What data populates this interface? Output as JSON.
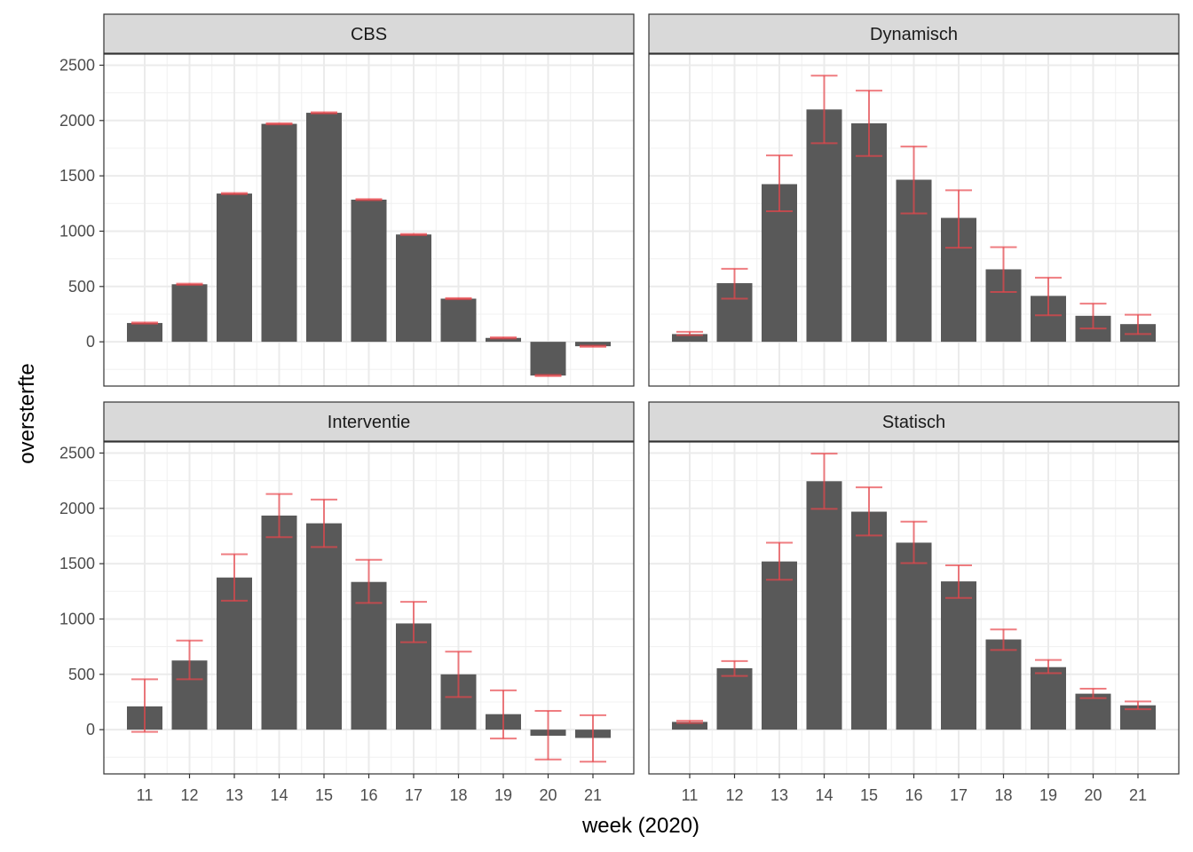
{
  "chart_data": {
    "type": "bar",
    "layout": "facet grid 2x2, shared axes",
    "xlabel": "week (2020)",
    "ylabel": "oversterfte",
    "categories": [
      "11",
      "12",
      "13",
      "14",
      "15",
      "16",
      "17",
      "18",
      "19",
      "20",
      "21"
    ],
    "ylim": [
      -400,
      2600
    ],
    "yticks": [
      0,
      500,
      1000,
      1500,
      2000,
      2500
    ],
    "grid": true,
    "bar_color": "#595959",
    "errorbar_color": "#e8464b",
    "panels": [
      {
        "title": "CBS",
        "values": [
          170,
          520,
          1340,
          1970,
          2070,
          1285,
          970,
          390,
          35,
          -305,
          -40
        ],
        "lower": [
          165,
          515,
          1335,
          1965,
          2065,
          1280,
          965,
          385,
          30,
          -310,
          -45
        ],
        "upper": [
          175,
          525,
          1345,
          1975,
          2075,
          1290,
          975,
          395,
          40,
          -300,
          -35
        ]
      },
      {
        "title": "Dynamisch",
        "values": [
          70,
          530,
          1425,
          2100,
          1975,
          1465,
          1120,
          655,
          415,
          235,
          160
        ],
        "lower": [
          60,
          390,
          1180,
          1795,
          1680,
          1160,
          850,
          450,
          240,
          120,
          70
        ],
        "upper": [
          90,
          660,
          1685,
          2405,
          2270,
          1765,
          1370,
          855,
          580,
          345,
          245
        ]
      },
      {
        "title": "Interventie",
        "values": [
          210,
          625,
          1375,
          1935,
          1865,
          1335,
          960,
          500,
          140,
          -55,
          -75
        ],
        "lower": [
          -20,
          455,
          1165,
          1740,
          1650,
          1145,
          790,
          295,
          -80,
          -270,
          -290
        ],
        "upper": [
          455,
          805,
          1585,
          2130,
          2080,
          1535,
          1155,
          705,
          355,
          170,
          130
        ]
      },
      {
        "title": "Statisch",
        "values": [
          70,
          555,
          1520,
          2245,
          1970,
          1690,
          1340,
          815,
          565,
          325,
          220
        ],
        "lower": [
          60,
          485,
          1355,
          1995,
          1755,
          1505,
          1190,
          720,
          510,
          285,
          185
        ],
        "upper": [
          80,
          620,
          1690,
          2495,
          2190,
          1880,
          1485,
          905,
          630,
          370,
          255
        ]
      }
    ]
  }
}
